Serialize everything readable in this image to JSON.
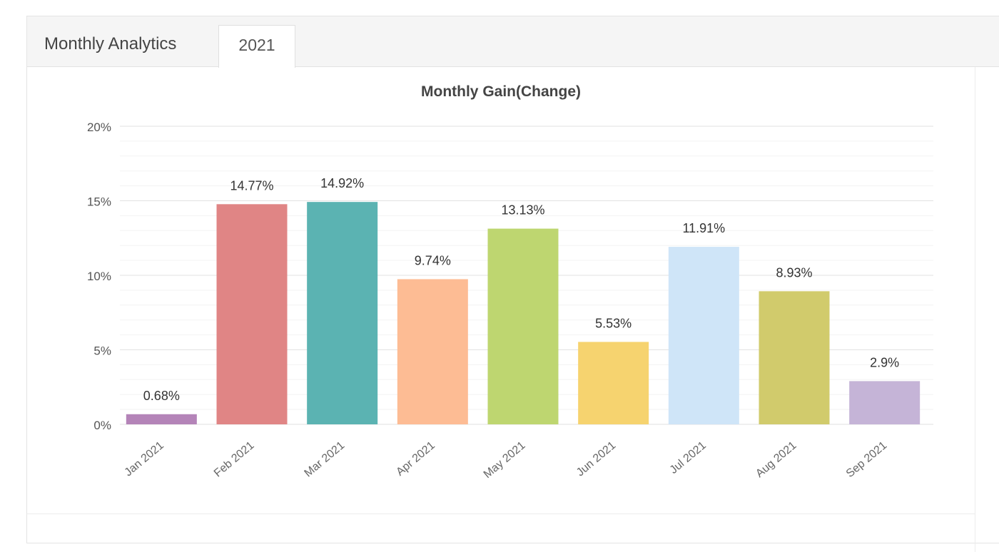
{
  "tabs": {
    "title": "Monthly Analytics",
    "year": "2021"
  },
  "chart_data": {
    "type": "bar",
    "title": "Monthly Gain(Change)",
    "xlabel": "",
    "ylabel": "",
    "categories": [
      "Jan 2021",
      "Feb 2021",
      "Mar 2021",
      "Apr 2021",
      "May 2021",
      "Jun 2021",
      "Jul 2021",
      "Aug 2021",
      "Sep 2021"
    ],
    "values": [
      0.68,
      14.77,
      14.92,
      9.74,
      13.13,
      5.53,
      11.91,
      8.93,
      2.9
    ],
    "data_labels": [
      "0.68%",
      "14.77%",
      "14.92%",
      "9.74%",
      "13.13%",
      "5.53%",
      "11.91%",
      "8.93%",
      "2.9%"
    ],
    "colors": [
      "#b484b8",
      "#e08585",
      "#5bb3b2",
      "#fdbc94",
      "#bed670",
      "#f6d36f",
      "#cfe5f8",
      "#d1cb6c",
      "#c5b4d7"
    ],
    "ylim": [
      0,
      20
    ],
    "yticks": [
      0,
      5,
      10,
      15,
      20
    ],
    "ytick_labels": [
      "0%",
      "5%",
      "10%",
      "15%",
      "20%"
    ],
    "grid": true,
    "legend": "none"
  }
}
